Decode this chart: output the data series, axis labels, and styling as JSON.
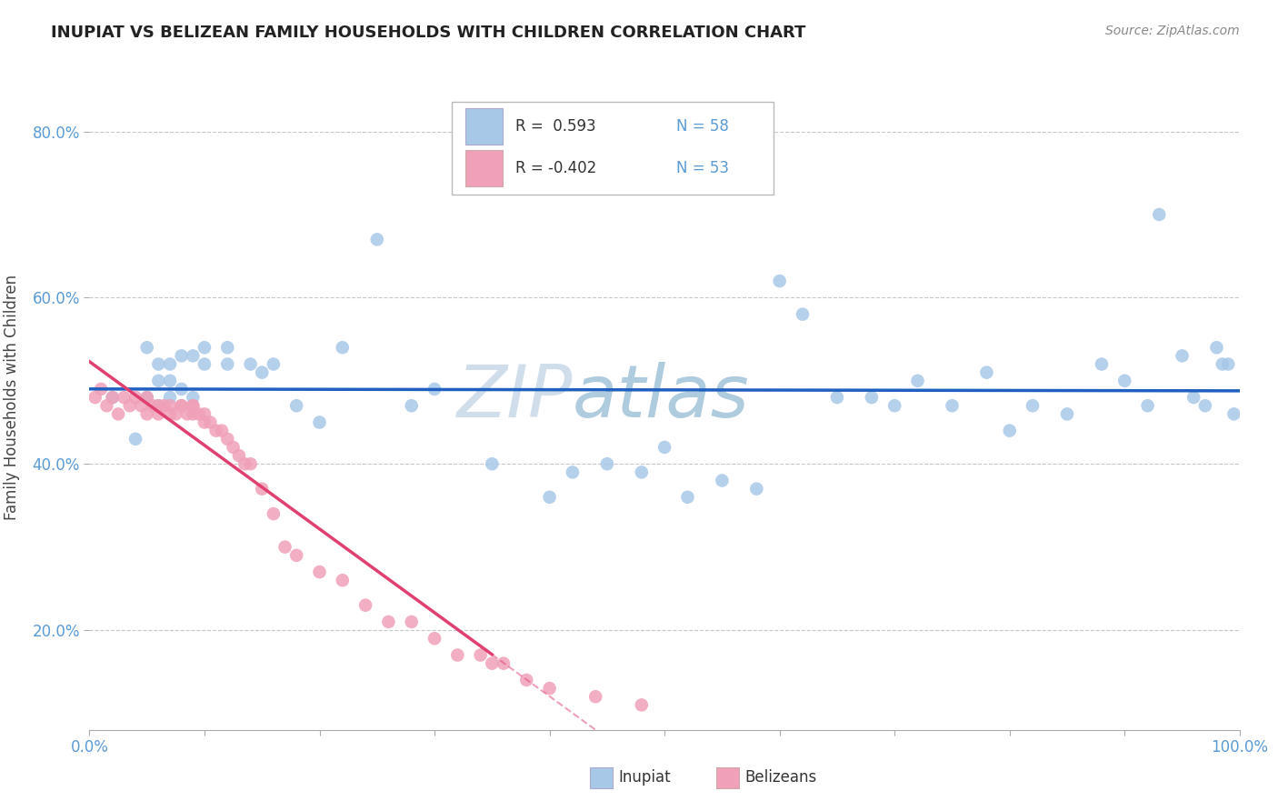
{
  "title": "INUPIAT VS BELIZEAN FAMILY HOUSEHOLDS WITH CHILDREN CORRELATION CHART",
  "source": "Source: ZipAtlas.com",
  "ylabel": "Family Households with Children",
  "xlim": [
    0,
    1.0
  ],
  "ylim": [
    0.08,
    0.88
  ],
  "yticks": [
    0.2,
    0.4,
    0.6,
    0.8
  ],
  "ytick_labels": [
    "20.0%",
    "40.0%",
    "60.0%",
    "80.0%"
  ],
  "xtick_labels": [
    "0.0%",
    "",
    "",
    "",
    "",
    "",
    "",
    "",
    "",
    "",
    "100.0%"
  ],
  "legend_r1": "R =  0.593",
  "legend_n1": "N = 58",
  "legend_r2": "R = -0.402",
  "legend_n2": "N = 53",
  "inupiat_color": "#A8C8E8",
  "belizean_color": "#F0A0B8",
  "line_inupiat": "#2060C0",
  "line_belizean": "#E04070",
  "watermark": "ZIPatlas",
  "background_color": "#FFFFFF",
  "grid_color": "#C8C8C8",
  "inupiat_x": [
    0.02,
    0.04,
    0.05,
    0.05,
    0.06,
    0.06,
    0.06,
    0.07,
    0.07,
    0.07,
    0.08,
    0.08,
    0.09,
    0.09,
    0.1,
    0.1,
    0.12,
    0.12,
    0.14,
    0.15,
    0.16,
    0.18,
    0.2,
    0.22,
    0.25,
    0.28,
    0.3,
    0.35,
    0.4,
    0.42,
    0.45,
    0.48,
    0.5,
    0.52,
    0.55,
    0.58,
    0.6,
    0.62,
    0.65,
    0.68,
    0.7,
    0.72,
    0.75,
    0.78,
    0.8,
    0.82,
    0.85,
    0.88,
    0.9,
    0.92,
    0.93,
    0.95,
    0.96,
    0.97,
    0.98,
    0.985,
    0.99,
    0.995
  ],
  "inupiat_y": [
    0.48,
    0.43,
    0.54,
    0.48,
    0.52,
    0.5,
    0.47,
    0.5,
    0.48,
    0.52,
    0.49,
    0.53,
    0.53,
    0.48,
    0.52,
    0.54,
    0.54,
    0.52,
    0.52,
    0.51,
    0.52,
    0.47,
    0.45,
    0.54,
    0.67,
    0.47,
    0.49,
    0.4,
    0.36,
    0.39,
    0.4,
    0.39,
    0.42,
    0.36,
    0.38,
    0.37,
    0.62,
    0.58,
    0.48,
    0.48,
    0.47,
    0.5,
    0.47,
    0.51,
    0.44,
    0.47,
    0.46,
    0.52,
    0.5,
    0.47,
    0.7,
    0.53,
    0.48,
    0.47,
    0.54,
    0.52,
    0.52,
    0.46
  ],
  "belizean_x": [
    0.005,
    0.01,
    0.015,
    0.02,
    0.025,
    0.03,
    0.035,
    0.04,
    0.045,
    0.05,
    0.05,
    0.055,
    0.06,
    0.06,
    0.065,
    0.07,
    0.07,
    0.075,
    0.08,
    0.08,
    0.085,
    0.09,
    0.09,
    0.09,
    0.095,
    0.1,
    0.1,
    0.105,
    0.11,
    0.115,
    0.12,
    0.125,
    0.13,
    0.135,
    0.14,
    0.15,
    0.16,
    0.17,
    0.18,
    0.2,
    0.22,
    0.24,
    0.26,
    0.28,
    0.3,
    0.32,
    0.34,
    0.35,
    0.36,
    0.38,
    0.4,
    0.44,
    0.48
  ],
  "belizean_y": [
    0.48,
    0.49,
    0.47,
    0.48,
    0.46,
    0.48,
    0.47,
    0.48,
    0.47,
    0.46,
    0.48,
    0.47,
    0.46,
    0.47,
    0.47,
    0.46,
    0.47,
    0.46,
    0.47,
    0.47,
    0.46,
    0.47,
    0.46,
    0.47,
    0.46,
    0.45,
    0.46,
    0.45,
    0.44,
    0.44,
    0.43,
    0.42,
    0.41,
    0.4,
    0.4,
    0.37,
    0.34,
    0.3,
    0.29,
    0.27,
    0.26,
    0.23,
    0.21,
    0.21,
    0.19,
    0.17,
    0.17,
    0.16,
    0.16,
    0.14,
    0.13,
    0.12,
    0.11
  ],
  "belizean_line_end_x": 0.35,
  "inupiat_line_start_x": 0.0,
  "inupiat_line_end_x": 1.0
}
